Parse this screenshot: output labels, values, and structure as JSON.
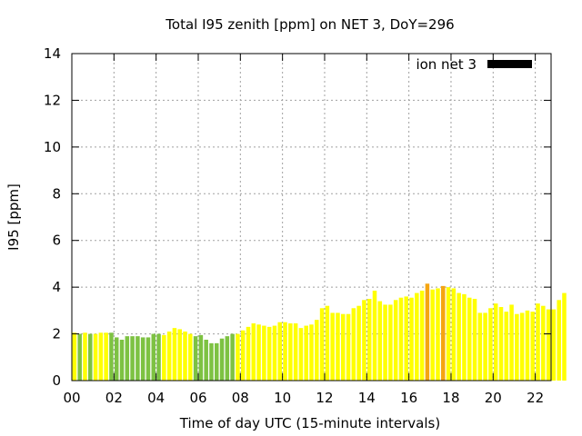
{
  "chart_data": {
    "type": "bar",
    "title": "Total I95 zenith [ppm] on NET 3, DoY=296",
    "xlabel": "Time of day UTC (15-minute intervals)",
    "ylabel": "I95 [ppm]",
    "xlim": [
      0,
      22.75
    ],
    "ylim": [
      0,
      14
    ],
    "x_ticks": [
      "00",
      "02",
      "04",
      "06",
      "08",
      "10",
      "12",
      "14",
      "16",
      "18",
      "20",
      "22"
    ],
    "y_ticks": [
      "0",
      "2",
      "4",
      "6",
      "8",
      "10",
      "12",
      "14"
    ],
    "grid": true,
    "legend": {
      "position": "top-right",
      "label": "ion net 3",
      "color": "#000000"
    },
    "colors": {
      "green": "#7dc242",
      "yellow": "#ffff00",
      "orange": "#f5a511"
    },
    "bar_step_hours": 0.25,
    "values": [
      2.05,
      2.0,
      2.05,
      2.0,
      2.0,
      2.05,
      2.05,
      2.05,
      1.85,
      1.75,
      1.9,
      1.9,
      1.9,
      1.85,
      1.85,
      2.0,
      2.0,
      1.95,
      2.1,
      2.25,
      2.2,
      2.1,
      2.0,
      1.9,
      1.95,
      1.75,
      1.6,
      1.6,
      1.8,
      1.9,
      2.0,
      2.0,
      2.15,
      2.3,
      2.45,
      2.4,
      2.35,
      2.3,
      2.35,
      2.5,
      2.5,
      2.45,
      2.45,
      2.25,
      2.35,
      2.4,
      2.6,
      3.1,
      3.2,
      2.9,
      2.9,
      2.85,
      2.85,
      3.1,
      3.2,
      3.45,
      3.5,
      3.85,
      3.4,
      3.25,
      3.25,
      3.45,
      3.55,
      3.6,
      3.55,
      3.75,
      3.85,
      4.15,
      3.9,
      3.95,
      4.05,
      4.0,
      3.95,
      3.75,
      3.7,
      3.55,
      3.5,
      2.9,
      2.9,
      3.1,
      3.3,
      3.15,
      2.95,
      3.25,
      2.85,
      2.9,
      3.0,
      2.95,
      3.3,
      3.2,
      3.05,
      3.05,
      3.45,
      3.75
    ],
    "bar_colors": [
      "yellow",
      "green",
      "yellow",
      "green",
      "yellow",
      "yellow",
      "yellow",
      "green",
      "green",
      "green",
      "green",
      "green",
      "green",
      "green",
      "green",
      "green",
      "green",
      "yellow",
      "yellow",
      "yellow",
      "yellow",
      "yellow",
      "yellow",
      "green",
      "green",
      "green",
      "green",
      "green",
      "green",
      "green",
      "green",
      "yellow",
      "yellow",
      "yellow",
      "yellow",
      "yellow",
      "yellow",
      "yellow",
      "yellow",
      "yellow",
      "yellow",
      "yellow",
      "yellow",
      "yellow",
      "yellow",
      "yellow",
      "yellow",
      "yellow",
      "yellow",
      "yellow",
      "yellow",
      "yellow",
      "yellow",
      "yellow",
      "yellow",
      "yellow",
      "yellow",
      "yellow",
      "yellow",
      "yellow",
      "yellow",
      "yellow",
      "yellow",
      "yellow",
      "yellow",
      "yellow",
      "yellow",
      "orange",
      "yellow",
      "yellow",
      "orange",
      "yellow",
      "yellow",
      "yellow",
      "yellow",
      "yellow",
      "yellow",
      "yellow",
      "yellow",
      "yellow",
      "yellow",
      "yellow",
      "yellow",
      "yellow",
      "yellow",
      "yellow",
      "yellow",
      "yellow",
      "yellow",
      "yellow",
      "yellow",
      "yellow",
      "yellow",
      "yellow"
    ]
  }
}
